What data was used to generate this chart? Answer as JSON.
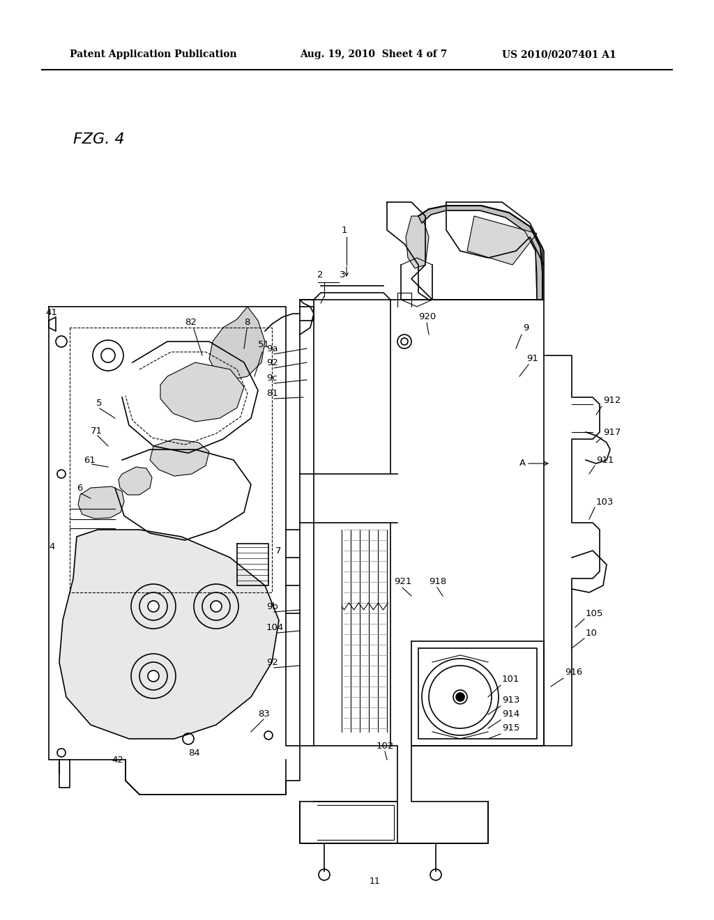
{
  "header_left": "Patent Application Publication",
  "header_mid": "Aug. 19, 2010  Sheet 4 of 7",
  "header_right": "US 2010/0207401 A1",
  "fig_label": "FZG. 4",
  "background_color": "#ffffff",
  "line_color": "#000000",
  "fig_width": 10.24,
  "fig_height": 13.2,
  "dpi": 100
}
